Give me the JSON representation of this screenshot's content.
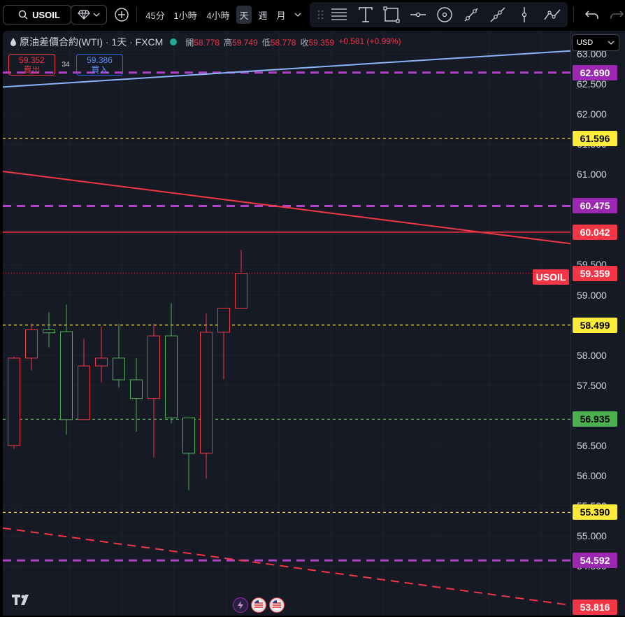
{
  "toolbar": {
    "symbol": "USOIL",
    "timeframes": [
      "45分",
      "1小時",
      "4小時",
      "天",
      "週",
      "月"
    ],
    "active_timeframe": "天"
  },
  "legend": {
    "title": "原油差價合約(WTI) · 1天 · FXCM",
    "open_label": "開",
    "open": "58.778",
    "high_label": "高",
    "high": "59.749",
    "low_label": "低",
    "low": "58.778",
    "close_label": "收",
    "close": "59.359",
    "change": "+0.581 (+0.99%)"
  },
  "trade": {
    "sell_price": "59.352",
    "sell_label": "賣出",
    "spread": "34",
    "buy_price": "59.386",
    "buy_label": "買入"
  },
  "currency": "USD",
  "symbol_label": "USOIL",
  "price_axis": {
    "min": 53.816,
    "max": 63.0,
    "ticks": [
      "63.000",
      "62.500",
      "62.000",
      "61.500",
      "61.000",
      "60.500",
      "60.000",
      "59.500",
      "59.000",
      "58.500",
      "58.000",
      "57.500",
      "57.000",
      "56.500",
      "56.000",
      "55.500",
      "55.000",
      "54.500"
    ],
    "badges": [
      {
        "value": "62.690",
        "bg": "#9c27b0",
        "fg": "#ffffff"
      },
      {
        "value": "61.596",
        "bg": "#ffeb3b",
        "fg": "#000000"
      },
      {
        "value": "60.475",
        "bg": "#9c27b0",
        "fg": "#ffffff"
      },
      {
        "value": "60.042",
        "bg": "#f23645",
        "fg": "#ffffff"
      },
      {
        "value": "59.359",
        "bg": "#f23645",
        "fg": "#ffffff"
      },
      {
        "value": "58.499",
        "bg": "#ffeb3b",
        "fg": "#000000"
      },
      {
        "value": "56.935",
        "bg": "#4caf50",
        "fg": "#000000"
      },
      {
        "value": "55.390",
        "bg": "#ffeb3b",
        "fg": "#000000"
      },
      {
        "value": "54.592",
        "bg": "#9c27b0",
        "fg": "#ffffff"
      },
      {
        "value": "53.816",
        "bg": "#f23645",
        "fg": "#ffffff"
      }
    ]
  },
  "chart_data": {
    "type": "candlestick",
    "series": [
      {
        "o": 56.5,
        "h": 57.98,
        "l": 56.44,
        "c": 57.95
      },
      {
        "o": 57.95,
        "h": 58.52,
        "l": 57.75,
        "c": 58.42
      },
      {
        "o": 58.42,
        "h": 58.71,
        "l": 58.13,
        "c": 58.37
      },
      {
        "o": 58.39,
        "h": 58.84,
        "l": 56.68,
        "c": 56.93
      },
      {
        "o": 56.93,
        "h": 58.27,
        "l": 56.93,
        "c": 57.82
      },
      {
        "o": 57.82,
        "h": 58.47,
        "l": 57.55,
        "c": 57.95
      },
      {
        "o": 57.95,
        "h": 58.52,
        "l": 57.46,
        "c": 57.59
      },
      {
        "o": 57.59,
        "h": 57.95,
        "l": 56.73,
        "c": 57.28
      },
      {
        "o": 57.28,
        "h": 58.52,
        "l": 56.3,
        "c": 58.32
      },
      {
        "o": 58.32,
        "h": 58.86,
        "l": 56.87,
        "c": 56.96
      },
      {
        "o": 56.96,
        "h": 56.96,
        "l": 55.76,
        "c": 56.37
      },
      {
        "o": 56.37,
        "h": 58.69,
        "l": 55.95,
        "c": 58.38
      },
      {
        "o": 58.38,
        "h": 58.7,
        "l": 57.6,
        "c": 58.78
      },
      {
        "o": 58.778,
        "h": 59.749,
        "l": 58.778,
        "c": 59.359
      }
    ],
    "levels": [
      {
        "price": 62.69,
        "color": "#b040c8",
        "style": "dash"
      },
      {
        "price": 61.596,
        "color": "#ffeb3b",
        "style": "dot"
      },
      {
        "price": 60.475,
        "color": "#b040c8",
        "style": "dash"
      },
      {
        "price": 60.042,
        "color": "#f23645",
        "style": "solid"
      },
      {
        "price": 58.499,
        "color": "#ffeb3b",
        "style": "dot"
      },
      {
        "price": 56.935,
        "color": "#4caf50",
        "style": "dot"
      },
      {
        "price": 55.39,
        "color": "#ffeb3b",
        "style": "dot"
      },
      {
        "price": 54.592,
        "color": "#b040c8",
        "style": "dash"
      }
    ],
    "trendlines": [
      {
        "p1": 62.45,
        "p2": 63.05,
        "color": "#8ab4f8",
        "style": "solid"
      },
      {
        "p1": 61.05,
        "p2": 59.85,
        "color": "#f23645",
        "style": "solid"
      },
      {
        "p1": 55.13,
        "p2": 53.85,
        "color": "#f23645",
        "style": "dash"
      }
    ]
  }
}
